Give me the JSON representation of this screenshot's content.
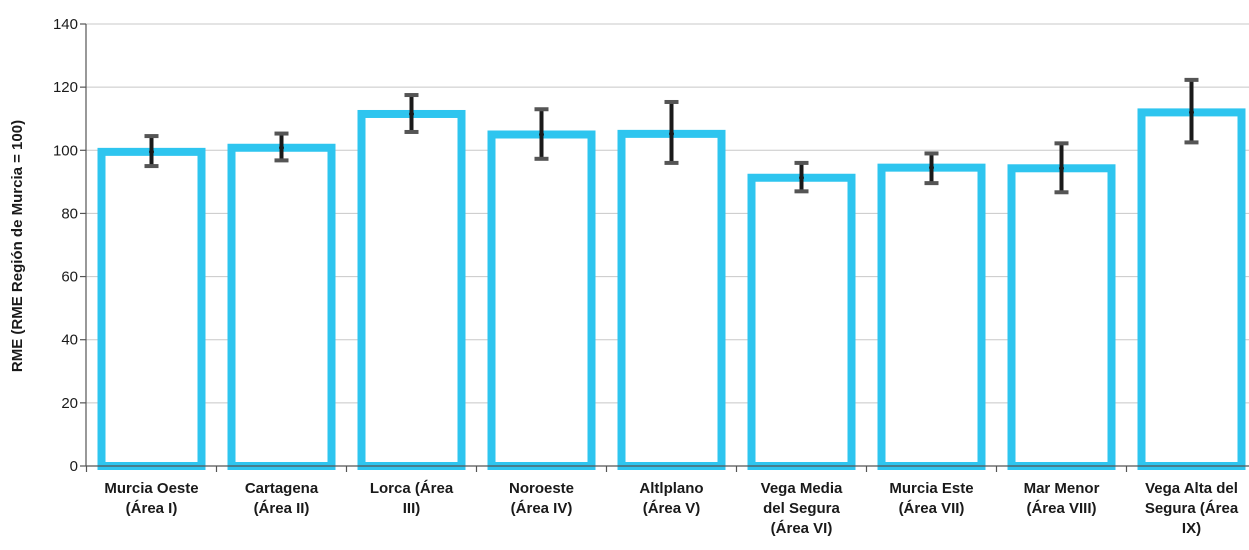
{
  "chart_data": {
    "type": "bar",
    "title": "",
    "xlabel": "",
    "ylabel": "RME (RME Región de Murcia = 100)",
    "ylim": [
      0,
      140
    ],
    "yticks": [
      0,
      20,
      40,
      60,
      80,
      100,
      120,
      140
    ],
    "grid": true,
    "categories": [
      [
        "Murcia Oeste",
        "(Área I)"
      ],
      [
        "Cartagena",
        "(Área II)"
      ],
      [
        "Lorca (Área",
        "III)"
      ],
      [
        "Noroeste",
        "(Área IV)"
      ],
      [
        "Altlplano",
        "(Área V)"
      ],
      [
        "Vega Media",
        "del Segura",
        "(Área VI)"
      ],
      [
        "Murcia Este",
        "(Área VII)"
      ],
      [
        "Mar Menor",
        "(Área VIII)"
      ],
      [
        "Vega Alta del",
        "Segura (Área",
        "IX)"
      ]
    ],
    "values": [
      99.5,
      100.8,
      111.5,
      105,
      105.2,
      91.3,
      94.5,
      94.3,
      112
    ],
    "error_low": [
      95,
      96.8,
      105.8,
      97.3,
      96,
      87,
      89.6,
      86.7,
      102.5
    ],
    "error_high": [
      104.5,
      105.3,
      117.5,
      113,
      115.3,
      96,
      99,
      102.2,
      122.3
    ],
    "colors": {
      "bar_outline": "#2ec5ef",
      "bar_fill": "#ffffff",
      "error_bar": "#1a1a1a",
      "error_cap": "#555555",
      "grid": "#c8c8c8",
      "axis": "#555555"
    }
  }
}
